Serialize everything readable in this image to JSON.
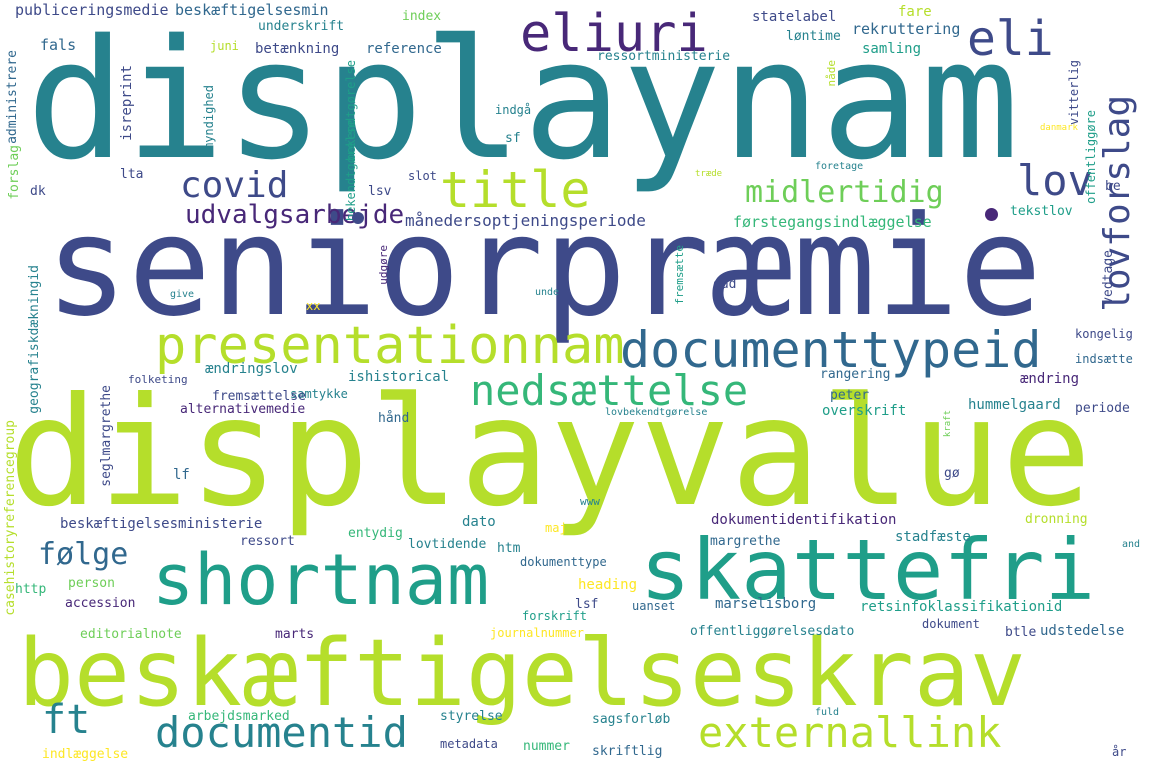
{
  "colors": {
    "c1": "#3e4a89",
    "c2": "#31688e",
    "c3": "#26828e",
    "c4": "#1f9e89",
    "c5": "#35b779",
    "c6": "#6ece58",
    "c7": "#b5de2b",
    "c8": "#fde725",
    "c9": "#482878",
    "c10": "#440154"
  },
  "words": {
    "displaynam": "displaynam",
    "seniorpraemie": "seniorpræmie",
    "displayvalue": "displayvalue",
    "beskaeftigelseskrav": "beskæftigelseskrav",
    "skattefri": "skattefri",
    "shortnam": "shortnam",
    "presentationnam": "presentationnam",
    "documenttypeid": "documenttypeid",
    "eliuri": "eliuri",
    "eli": "eli",
    "title": "title",
    "covid": "covid",
    "lov": "lov",
    "lovforslag": "lovforslag",
    "midlertidig": "midlertidig",
    "udvalgsarbejde": "udvalgsarbejde",
    "nedsaettelse": "nedsættelse",
    "foelge": "følge",
    "ft": "ft",
    "documentid": "documentid",
    "externallink": "externallink",
    "maanedersoptjeningsperiode": "månedersoptjeningsperiode",
    "foerstegangsindlaeggelse": "førstegangsindlæggelse",
    "publiceringsmedie": "publiceringsmedie",
    "beskaeftigelsesmin": "beskæftigelsesmin",
    "underskrift": "underskrift",
    "index": "index",
    "statelabel": "statelabel",
    "fare": "fare",
    "rekruttering": "rekruttering",
    "loentime": "løntime",
    "samling": "samling",
    "fals": "fals",
    "juni": "juni",
    "betaenkning": "betænkning",
    "reference": "reference",
    "ressortministerie": "ressortministerie",
    "indgaa": "indgå",
    "sf": "sf",
    "lta": "lta",
    "lsv": "lsv",
    "slot": "slot",
    "trade": "træde",
    "foretage": "foretage",
    "danmark": "danmark",
    "tekstlov": "tekstlov",
    "dk": "dk",
    "be": "be",
    "vedtage": "vedtage",
    "kongelig": "kongelig",
    "indsaette": "indsætte",
    "aendring": "ændring",
    "rangering": "rangering",
    "aendringslov": "ændringslov",
    "folketing": "folketing",
    "samtykke": "samtykke",
    "ishistorical": "ishistorical",
    "alternativemedie": "alternativemedie",
    "fremsaettelse": "fremsættelse",
    "haand": "hånd",
    "lovbekendtgoerelse": "lovbekendtgørelse",
    "peter": "peter",
    "overskrift": "overskrift",
    "hummelgaard": "hummelgaard",
    "periode": "periode",
    "kraft": "kraft",
    "lf": "lf",
    "goe": "gø",
    "www": "www",
    "xx": "xx",
    "give": "give",
    "unde": "unde",
    "gud": "gud",
    "beskaeftigelsesministerie": "beskæftigelsesministerie",
    "ressort": "ressort",
    "entydig": "entydig",
    "dato": "dato",
    "maj": "maj",
    "dokumentidentifikation": "dokumentidentifikation",
    "margrethe": "margrethe",
    "stadfaeste": "stadfæste",
    "dronning": "dronning",
    "lovtidende": "lovtidende",
    "htm": "htm",
    "dokumenttype": "dokumenttype",
    "http": "http",
    "person": "person",
    "heading": "heading",
    "accession": "accession",
    "lsf": "lsf",
    "uanset": "uanset",
    "marselisborg": "marselisborg",
    "retsinfoklassifikationid": "retsinfoklassifikationid",
    "forskrift": "forskrift",
    "editorialnote": "editorialnote",
    "journalnummer": "journalnummer",
    "offentliggoerelsesdato": "offentliggørelsesdato",
    "dokument": "dokument",
    "btle": "btle",
    "udstedelse": "udstedelse",
    "marts": "marts",
    "and": "and",
    "arbejdsmarked": "arbejdsmarked",
    "styrelse": "styrelse",
    "sagsforloeb": "sagsforløb",
    "fuld": "fuld",
    "indlaeggelse": "indlæggelse",
    "metadata": "metadata",
    "nummer": "nummer",
    "skriftlig": "skriftlig",
    "aar": "år",
    "administrere": "administrere",
    "forslag": "forslag",
    "isreprint": "isreprint",
    "myndighed": "myndighed",
    "bekendtgoerelse_a": "bekendtgørelse",
    "bekendtgoerelse_b": "bekendtgørelse",
    "geografiskdaekningid": "geografiskdækningid",
    "casehistoryreferencegroup": "casehistoryreferencegroup",
    "seglmargrethe": "seglmargrethe",
    "udgoere": "udgøre",
    "fremsaette": "fremsætte",
    "naade": "nåde",
    "vitterlig": "vitterlig",
    "offentliggoere": "offentliggøre"
  }
}
